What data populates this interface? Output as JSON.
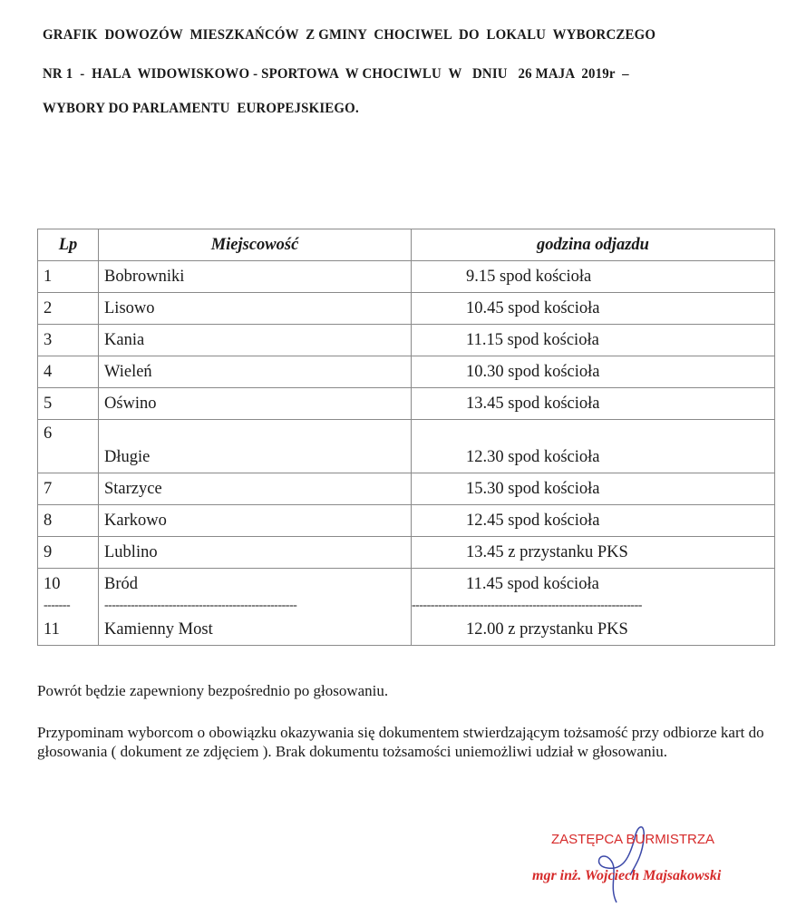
{
  "title_lines": [
    "GRAFIK  DOWOZÓW  MIESZKAŃCÓW  Z GMINY  CHOCIWEL  DO  LOKALU  WYBORCZEGO",
    "NR 1  -  HALA  WIDOWISKOWO - SPORTOWA  W CHOCIWLU  W   DNIU   26 MAJA  2019r  –",
    "WYBORY DO PARLAMENTU  EUROPEJSKIEGO."
  ],
  "table": {
    "headers": [
      "Lp",
      "Miejscowość",
      "godzina odjazdu"
    ],
    "rows": [
      {
        "lp": "1",
        "place": "Bobrowniki",
        "departure": "9.15  spod kościoła"
      },
      {
        "lp": "2",
        "place": "Lisowo",
        "departure": "10.45   spod kościoła"
      },
      {
        "lp": "3",
        "place": "Kania",
        "departure": "11.15   spod kościoła"
      },
      {
        "lp": "4",
        "place": "Wieleń",
        "departure": "10.30  spod kościoła"
      },
      {
        "lp": "5",
        "place": "Oświno",
        "departure": "13.45  spod kościoła"
      },
      {
        "lp": "6",
        "place": "Długie",
        "departure": "12.30  spod kościoła"
      },
      {
        "lp": "7",
        "place": "Starzyce",
        "departure": "15.30  spod kościoła"
      },
      {
        "lp": "8",
        "place": "Karkowo",
        "departure": "12.45  spod kościoła"
      },
      {
        "lp": "9",
        "place": "Lublino",
        "departure": "13.45  z przystanku PKS"
      },
      {
        "lp": "10",
        "place": "Bród",
        "departure": "11.45  spod kościoła"
      },
      {
        "lp": "11",
        "place": "Kamienny Most",
        "departure": "12.00  z przystanku PKS"
      }
    ],
    "dash_separators": [
      "-------",
      "---------------------------------------------------",
      "-------------------------------------------------------------"
    ]
  },
  "notes": [
    "Powrót będzie zapewniony bezpośrednio po głosowaniu.",
    "Przypominam wyborcom o obowiązku okazywania się dokumentem stwierdzającym tożsamość przy odbiorze kart do głosowania ( dokument ze zdjęciem ). Brak dokumentu tożsamości uniemożliwi udział w głosowaniu."
  ],
  "stamp": {
    "position": "ZASTĘPCA BURMISTRZA",
    "name": "mgr inż. Wojciech Majsakowski",
    "color": "#d62a2a"
  }
}
